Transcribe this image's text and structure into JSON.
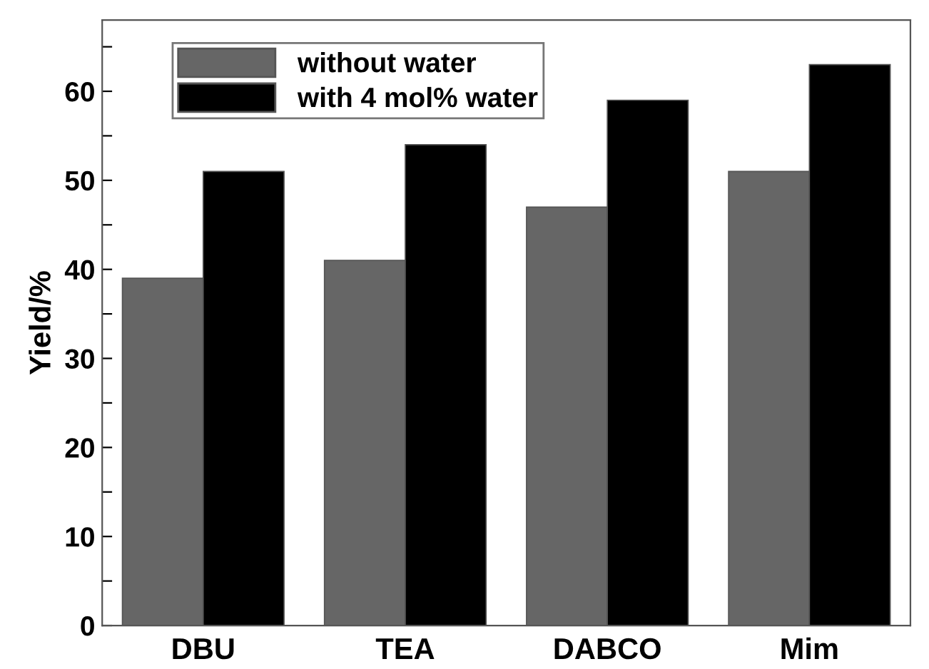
{
  "chart_data": {
    "type": "bar",
    "ylabel": "Yield/%",
    "categories": [
      "DBU",
      "TEA",
      "DABCO",
      "Mim"
    ],
    "series": [
      {
        "name": "without water",
        "color": "#666666",
        "values": [
          39,
          41,
          47,
          51
        ]
      },
      {
        "name": "with 4 mol% water",
        "color": "#000000",
        "values": [
          51,
          54,
          59,
          63
        ]
      }
    ],
    "ylim": [
      0,
      68
    ],
    "yticks": [
      0,
      {
        "value": 5,
        "label": null
      },
      10,
      {
        "value": 15,
        "label": null
      },
      20,
      {
        "value": 25,
        "label": null
      },
      30,
      {
        "value": 35,
        "label": null
      },
      40,
      {
        "value": 45,
        "label": null
      },
      50,
      {
        "value": 55,
        "label": null
      },
      60,
      {
        "value": 65,
        "label": null
      }
    ],
    "legend": "top left",
    "grid": false
  }
}
